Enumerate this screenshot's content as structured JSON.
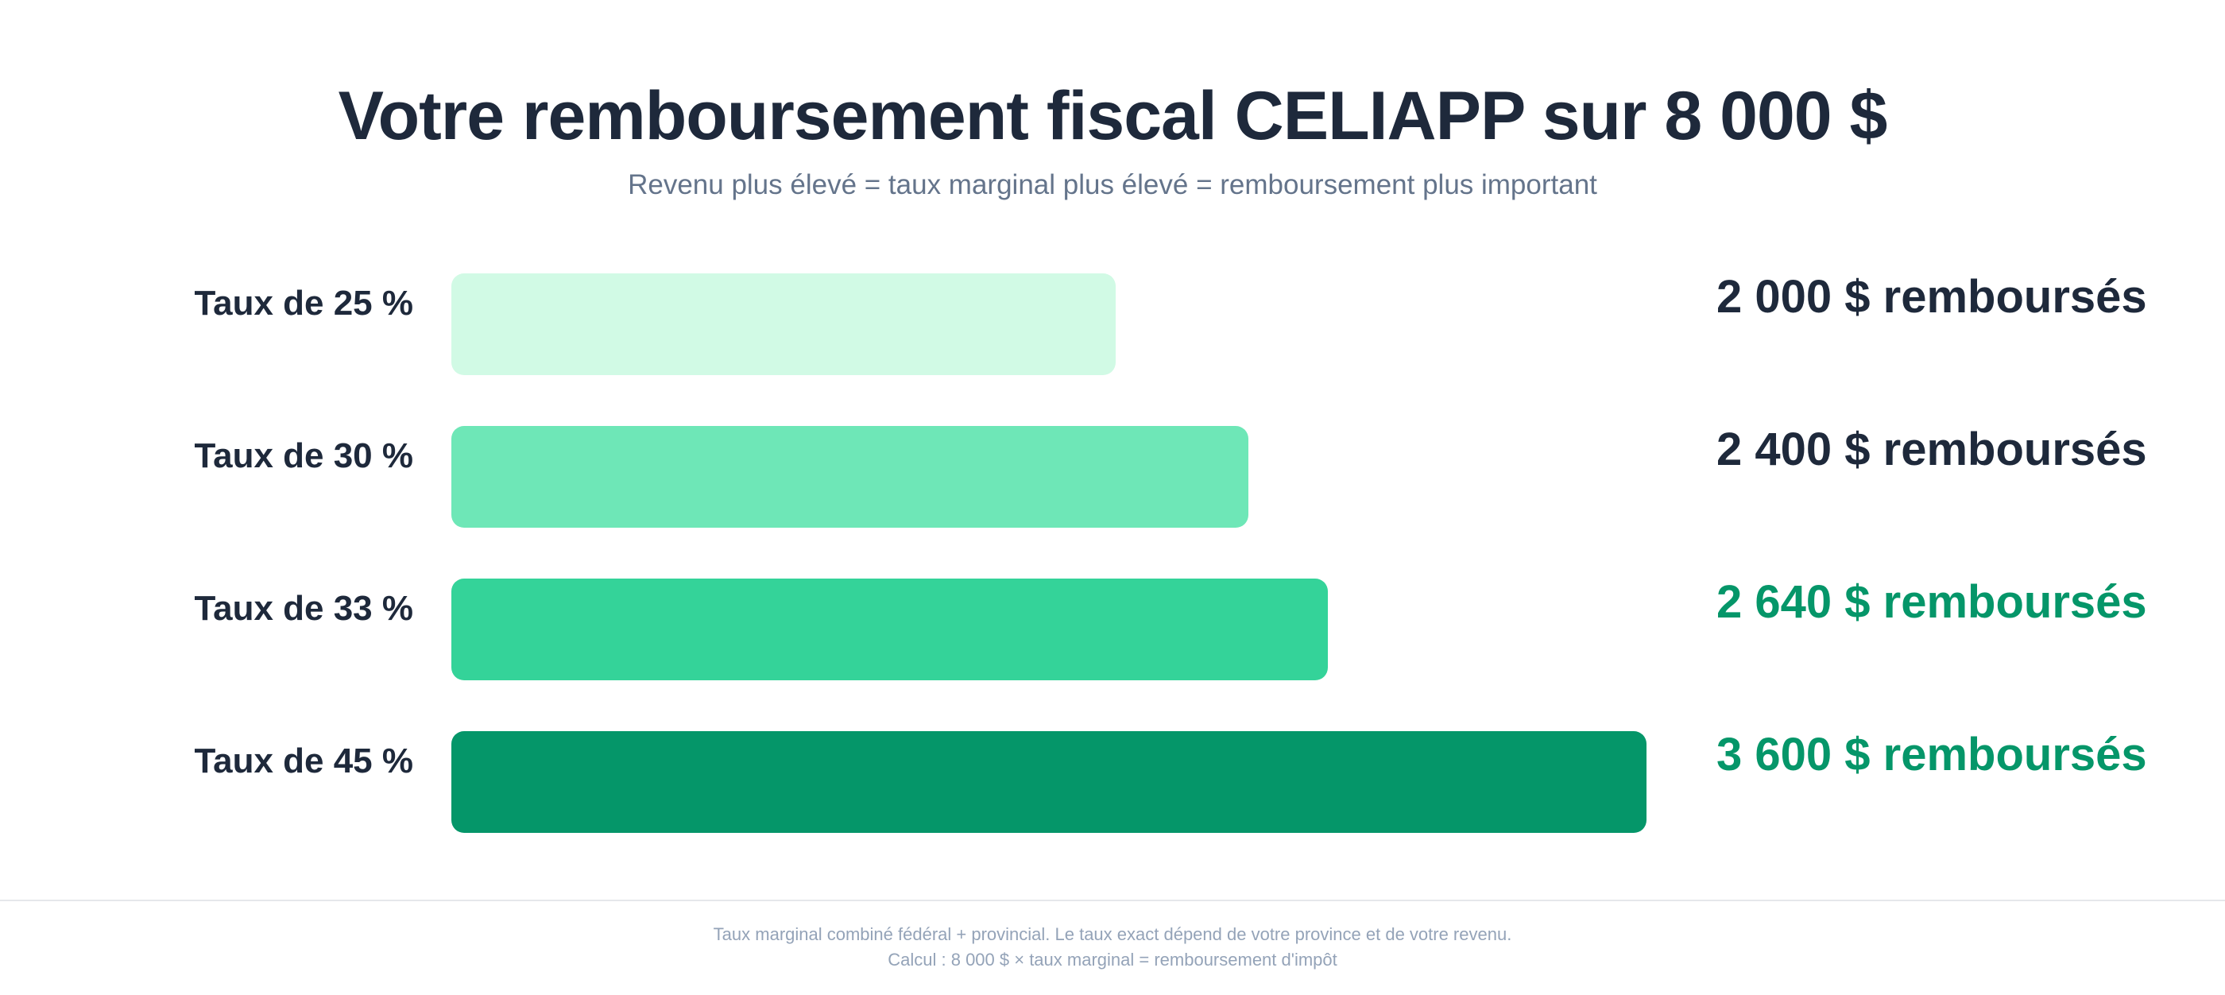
{
  "header": {
    "title": "Votre remboursement fiscal CELIAPP sur 8 000 $",
    "subtitle": "Revenu plus élevé = taux marginal plus élevé = remboursement plus important"
  },
  "chart_data": {
    "type": "bar",
    "orientation": "horizontal",
    "title": "Votre remboursement fiscal CELIAPP sur 8 000 $",
    "subtitle": "Revenu plus élevé = taux marginal plus élevé = remboursement plus important",
    "categories": [
      "Taux de 25 %",
      "Taux de 30 %",
      "Taux de 33 %",
      "Taux de 45 %"
    ],
    "values": [
      2000,
      2400,
      2640,
      3600
    ],
    "value_labels": [
      "2 000 $ remboursés",
      "2 400 $ remboursés",
      "2 640 $ remboursés",
      "3 600 $ remboursés"
    ],
    "bar_colors": [
      "#d1fae5",
      "#6ee7b7",
      "#34d399",
      "#059669"
    ],
    "value_label_colors": [
      "#1e293b",
      "#1e293b",
      "#059669",
      "#059669"
    ],
    "xlim": [
      0,
      3600
    ],
    "grid": false,
    "legend": "none"
  },
  "footer": {
    "note_line1": "Taux marginal combiné fédéral + provincial. Le taux exact dépend de votre province et de votre revenu.",
    "note_line2": "Calcul : 8 000 $ × taux marginal = remboursement d'impôt"
  }
}
